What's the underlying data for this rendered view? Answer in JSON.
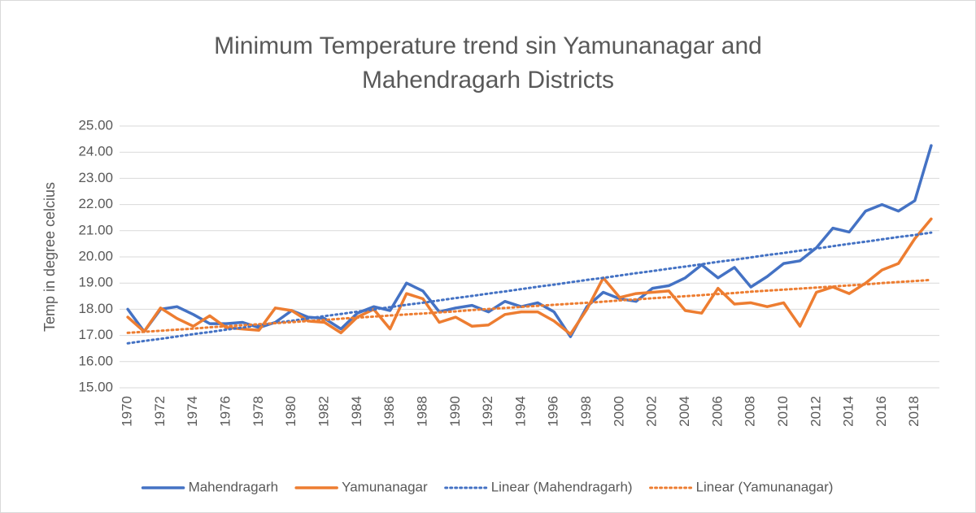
{
  "chart_data": {
    "type": "line",
    "title": "Minimum Temperature trend sin Yamunanagar and Mahendragarh Districts",
    "y_label": "Temp in degree celcius",
    "categories": [
      "1970",
      null,
      "1972",
      null,
      "1974",
      null,
      "1976",
      null,
      "1978",
      null,
      "1980",
      null,
      "1982",
      null,
      "1984",
      null,
      "1986",
      null,
      "1988",
      null,
      "1990",
      null,
      "1992",
      null,
      "1994",
      null,
      "1996",
      null,
      "1998",
      null,
      "2000",
      null,
      "2002",
      null,
      "2004",
      null,
      "2006",
      null,
      "2008",
      null,
      "2010",
      null,
      "2012",
      null,
      "2014",
      null,
      "2016",
      null,
      "2018",
      null
    ],
    "series": [
      {
        "name": "Mahendragarh",
        "color": "#4472c4",
        "dash": false,
        "values": [
          18.0,
          17.15,
          18.0,
          18.1,
          17.8,
          17.45,
          17.45,
          17.5,
          17.3,
          17.5,
          17.95,
          17.7,
          17.65,
          17.25,
          17.85,
          18.1,
          17.95,
          19.0,
          18.7,
          17.9,
          18.05,
          18.15,
          17.9,
          18.3,
          18.1,
          18.25,
          17.9,
          16.95,
          18.1,
          18.65,
          18.4,
          18.3,
          18.8,
          18.9,
          19.2,
          19.7,
          19.2,
          19.6,
          18.85,
          19.25,
          19.75,
          19.85,
          20.35,
          21.1,
          20.95,
          21.75,
          22.0,
          21.75,
          22.15,
          24.25
        ]
      },
      {
        "name": "Yamunanagar",
        "color": "#ed7d31",
        "dash": false,
        "values": [
          17.7,
          17.15,
          18.05,
          17.65,
          17.35,
          17.75,
          17.3,
          17.25,
          17.2,
          18.05,
          17.95,
          17.55,
          17.5,
          17.1,
          17.7,
          18.0,
          17.25,
          18.6,
          18.4,
          17.5,
          17.7,
          17.35,
          17.4,
          17.8,
          17.9,
          17.9,
          17.55,
          17.05,
          18.0,
          19.2,
          18.45,
          18.6,
          18.65,
          18.7,
          17.95,
          17.85,
          18.8,
          18.2,
          18.25,
          18.1,
          18.25,
          17.35,
          18.65,
          18.85,
          18.6,
          19.0,
          19.5,
          19.75,
          20.7,
          21.45
        ]
      },
      {
        "name": "Linear (Mahendragarh)",
        "color": "#4472c4",
        "dash": true,
        "values": [
          16.7,
          16.79,
          16.87,
          16.96,
          17.05,
          17.13,
          17.22,
          17.3,
          17.39,
          17.48,
          17.56,
          17.65,
          17.74,
          17.82,
          17.91,
          17.99,
          18.08,
          18.17,
          18.25,
          18.34,
          18.43,
          18.51,
          18.6,
          18.68,
          18.77,
          18.86,
          18.94,
          19.03,
          19.12,
          19.2,
          19.29,
          19.38,
          19.46,
          19.55,
          19.63,
          19.72,
          19.81,
          19.89,
          19.98,
          20.07,
          20.15,
          20.24,
          20.32,
          20.41,
          20.5,
          20.58,
          20.67,
          20.76,
          20.84,
          20.93
        ]
      },
      {
        "name": "Linear (Yamunanagar)",
        "color": "#ed7d31",
        "dash": true,
        "values": [
          17.1,
          17.14,
          17.18,
          17.22,
          17.26,
          17.31,
          17.35,
          17.39,
          17.43,
          17.47,
          17.51,
          17.55,
          17.59,
          17.64,
          17.68,
          17.72,
          17.76,
          17.8,
          17.84,
          17.88,
          17.92,
          17.97,
          18.01,
          18.05,
          18.09,
          18.13,
          18.17,
          18.21,
          18.25,
          18.29,
          18.34,
          18.38,
          18.42,
          18.46,
          18.5,
          18.54,
          18.58,
          18.62,
          18.67,
          18.71,
          18.75,
          18.79,
          18.83,
          18.87,
          18.91,
          18.95,
          19.0,
          19.04,
          19.08,
          19.12
        ]
      }
    ],
    "ylim": [
      15,
      25
    ],
    "yticks": [
      {
        "value": 15,
        "label": "15.00"
      },
      {
        "value": 16,
        "label": "16.00"
      },
      {
        "value": 17,
        "label": "17.00"
      },
      {
        "value": 18,
        "label": "18.00"
      },
      {
        "value": 19,
        "label": "19.00"
      },
      {
        "value": 20,
        "label": "20.00"
      },
      {
        "value": 21,
        "label": "21.00"
      },
      {
        "value": 22,
        "label": "22.00"
      },
      {
        "value": 23,
        "label": "23.00"
      },
      {
        "value": 24,
        "label": "24.00"
      },
      {
        "value": 25,
        "label": "25.00"
      }
    ],
    "grid": true,
    "legend": "bottom"
  }
}
